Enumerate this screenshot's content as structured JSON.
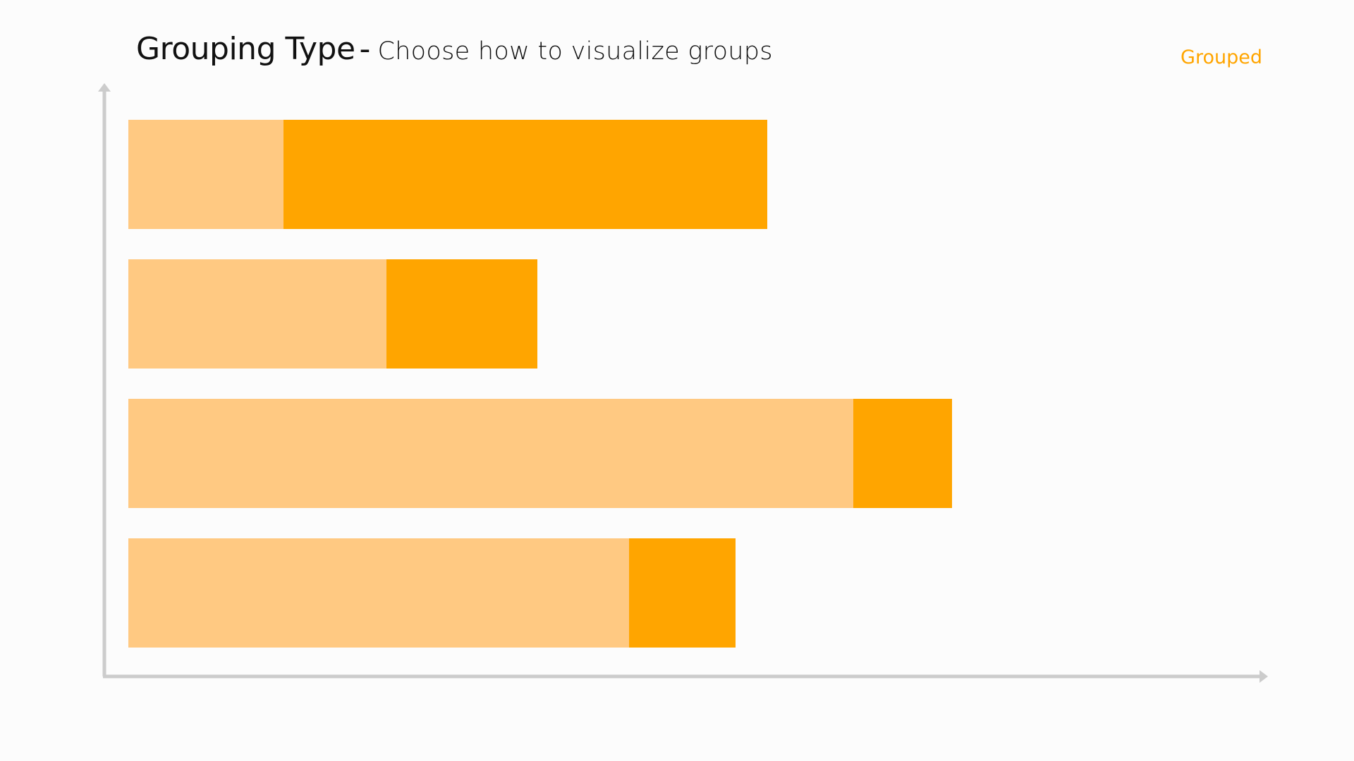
{
  "header": {
    "title": "Grouping Type",
    "separator": "-",
    "subtitle": "Choose how to visualize groups"
  },
  "mode_toggle": {
    "label": "Grouped"
  },
  "colors": {
    "accent": "#ffa500",
    "light_segment": "#ffc982",
    "dark_segment": "#ffa500",
    "axis": "#cccccc",
    "background": "#fcfcfc"
  },
  "chart_data": {
    "type": "bar",
    "orientation": "horizontal",
    "stacked": true,
    "categories": [
      "",
      "",
      "",
      ""
    ],
    "series": [
      {
        "values": [
          22,
          36.6,
          102.8,
          71
        ]
      },
      {
        "values": [
          68.6,
          21.4,
          14,
          15.1
        ]
      }
    ],
    "xlabel": "",
    "ylabel": "",
    "xlim": [
      0,
      128
    ],
    "grid": false,
    "axis_arrows": true
  }
}
